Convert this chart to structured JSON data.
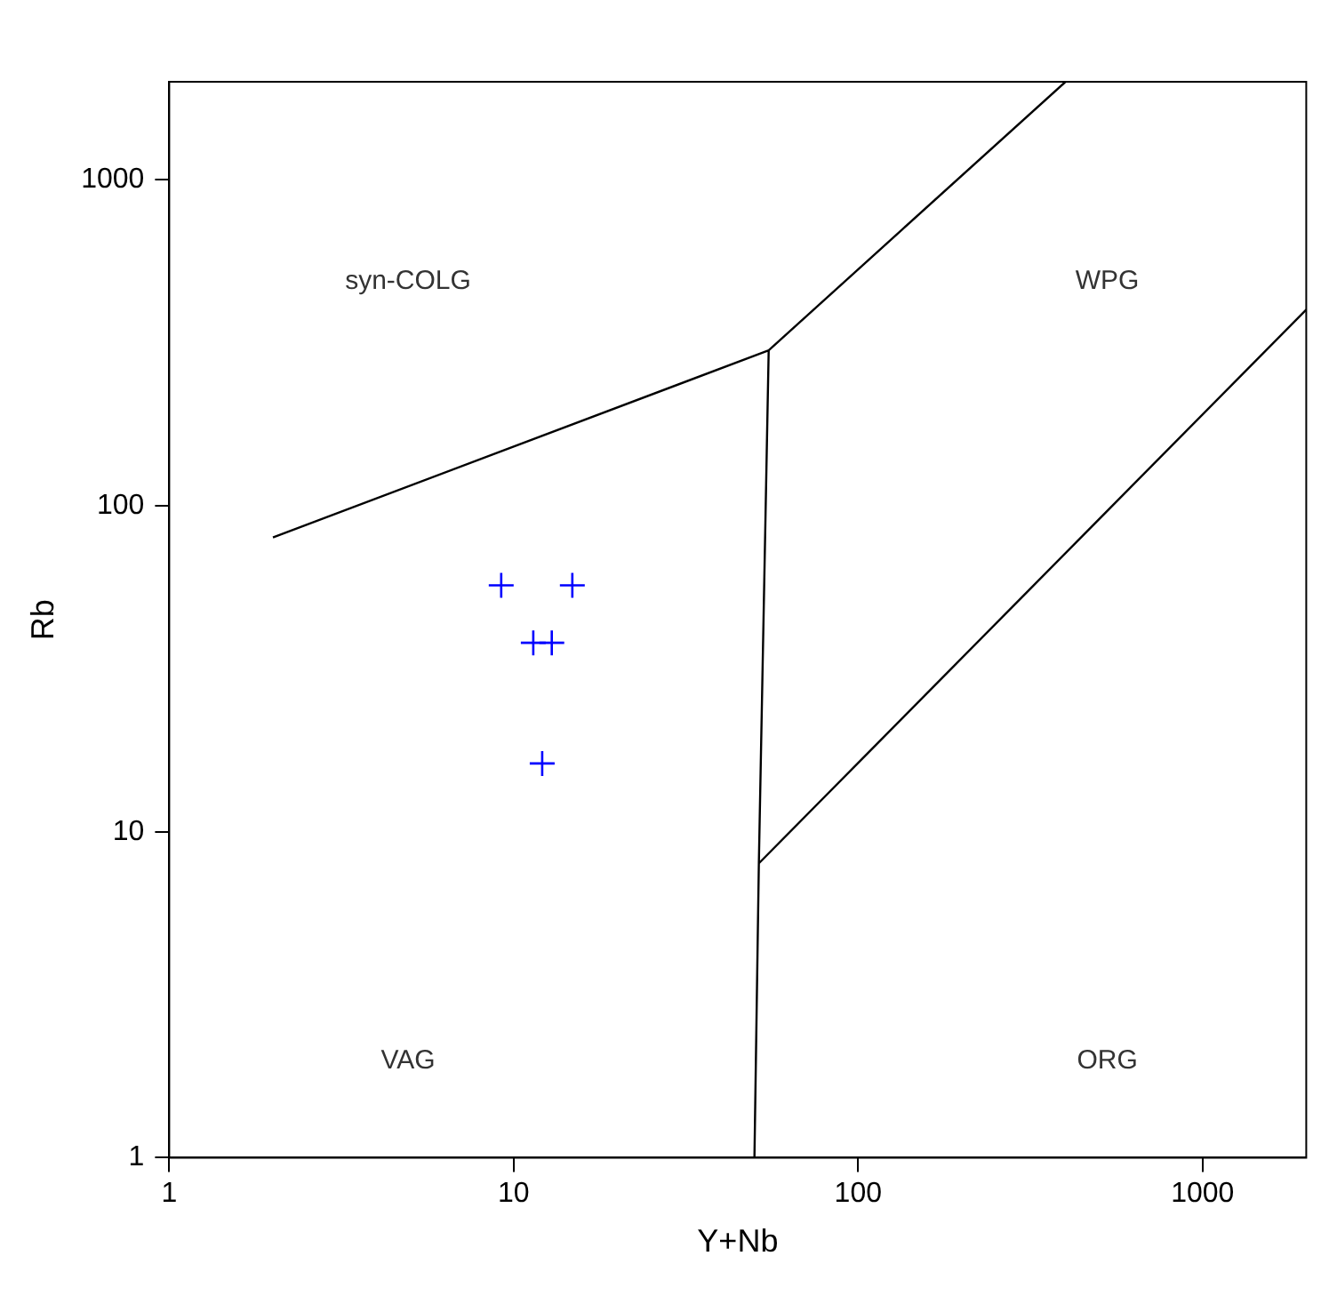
{
  "chart_data": {
    "type": "scatter",
    "xlabel": "Y+Nb",
    "ylabel": "Rb",
    "log": "xy",
    "xlim": [
      1,
      2000
    ],
    "ylim": [
      1,
      2000
    ],
    "xticks": [
      1,
      10,
      100,
      1000
    ],
    "yticks": [
      1,
      10,
      100,
      1000
    ],
    "grid": false,
    "legend": false,
    "series": [
      {
        "color": "#0000ff",
        "marker": "cross",
        "x": [
          9.2,
          14.8,
          11.4,
          12.9,
          12.1
        ],
        "values": [
          57,
          57,
          38,
          38,
          16.2
        ]
      },
      {
        "type": "line",
        "color": "#000000",
        "marker": "none",
        "line_style": "solid",
        "x": [
          2,
          55,
          400,
          null,
          55,
          51.5,
          50,
          null,
          51.5,
          2000
        ],
        "values": [
          80,
          300,
          2000,
          null,
          300,
          8,
          1,
          null,
          8,
          400
        ]
      }
    ],
    "annotations": [
      "syn-COLG",
      "WPG",
      "VAG",
      "ORG"
    ]
  }
}
